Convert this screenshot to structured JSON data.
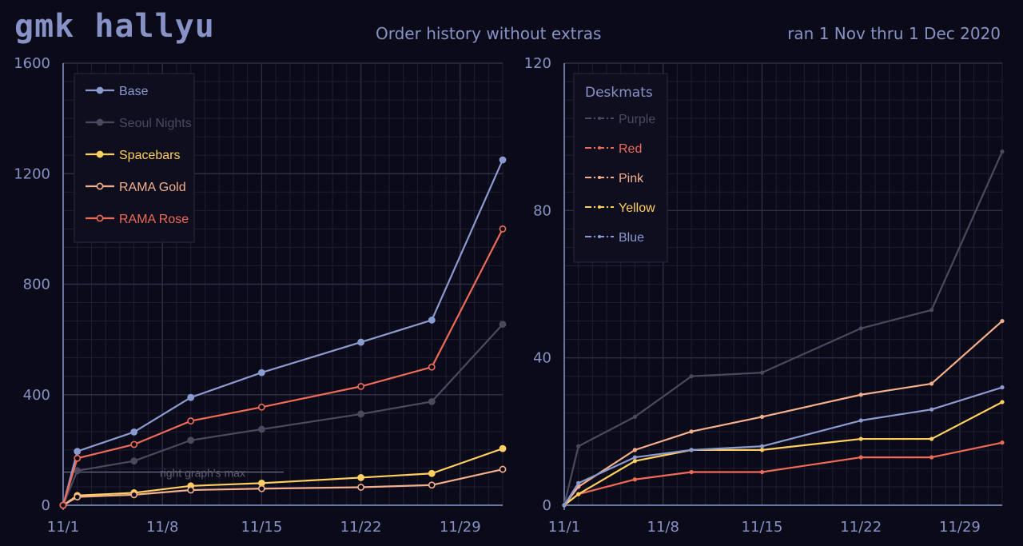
{
  "header": {
    "title": "gmk hallyu",
    "subtitle": "Order history without extras",
    "date_range": "ran 1 Nov thru 1 Dec 2020"
  },
  "chart_data": [
    {
      "type": "line",
      "title": "",
      "x": [
        0,
        1,
        5,
        9,
        14,
        21,
        26,
        31
      ],
      "x_ticks": [
        0,
        7,
        14,
        21,
        28
      ],
      "x_tick_labels": [
        "11/1",
        "11/8",
        "11/15",
        "11/22",
        "11/29"
      ],
      "xlim": [
        0,
        31
      ],
      "ylim": [
        0,
        1600
      ],
      "y_ticks": [
        0,
        400,
        800,
        1200,
        1600
      ],
      "y_tick_labels": [
        "0",
        "400",
        "800",
        "1200",
        "1600"
      ],
      "grid": true,
      "legend_position": "top-left",
      "legend_title": "",
      "annotation": {
        "label": "right graph's max",
        "y": 120
      },
      "series": [
        {
          "name": "Base",
          "color": "#8b9bd0",
          "values": [
            0,
            195,
            265,
            390,
            480,
            590,
            670,
            1250
          ]
        },
        {
          "name": "Seoul Nights",
          "color": "#4a4a5e",
          "values": [
            0,
            125,
            160,
            235,
            275,
            330,
            375,
            655
          ]
        },
        {
          "name": "Spacebars",
          "color": "#ffd060",
          "values": [
            0,
            35,
            45,
            70,
            80,
            100,
            115,
            205
          ]
        },
        {
          "name": "RAMA Gold",
          "color": "#f4b08c",
          "values": [
            0,
            30,
            38,
            55,
            60,
            65,
            73,
            130
          ]
        },
        {
          "name": "RAMA Rose",
          "color": "#f06a58",
          "values": [
            0,
            170,
            220,
            305,
            355,
            430,
            500,
            1000
          ]
        }
      ]
    },
    {
      "type": "line",
      "title": "",
      "x": [
        0,
        1,
        5,
        9,
        14,
        21,
        26,
        31
      ],
      "x_ticks": [
        0,
        7,
        14,
        21,
        28
      ],
      "x_tick_labels": [
        "11/1",
        "11/8",
        "11/15",
        "11/22",
        "11/29"
      ],
      "xlim": [
        0,
        31
      ],
      "ylim": [
        0,
        120
      ],
      "y_ticks": [
        0,
        40,
        80,
        120
      ],
      "y_tick_labels": [
        "0",
        "40",
        "80",
        "120"
      ],
      "grid": true,
      "legend_position": "top-left",
      "legend_title": "Deskmats",
      "series": [
        {
          "name": "Purple",
          "color": "#4a4a5e",
          "values": [
            0,
            16,
            24,
            35,
            36,
            48,
            53,
            96
          ]
        },
        {
          "name": "Red",
          "color": "#f06a58",
          "values": [
            0,
            3,
            7,
            9,
            9,
            13,
            13,
            17
          ]
        },
        {
          "name": "Pink",
          "color": "#f4b08c",
          "values": [
            0,
            5,
            15,
            20,
            24,
            30,
            33,
            50
          ]
        },
        {
          "name": "Yellow",
          "color": "#ffd060",
          "values": [
            0,
            3,
            12,
            15,
            15,
            18,
            18,
            28
          ]
        },
        {
          "name": "Blue",
          "color": "#8b9bd0",
          "values": [
            0,
            6,
            13,
            15,
            16,
            23,
            26,
            32
          ]
        }
      ]
    }
  ],
  "colors": {
    "background": "#0b0a18",
    "text": "#8792c6",
    "grid_minor": "#1f1e33",
    "grid_major": "#2e2d46",
    "axis": "#8792c6",
    "legend_bg": "#0f0e1e",
    "legend_border": "#2a2940"
  }
}
